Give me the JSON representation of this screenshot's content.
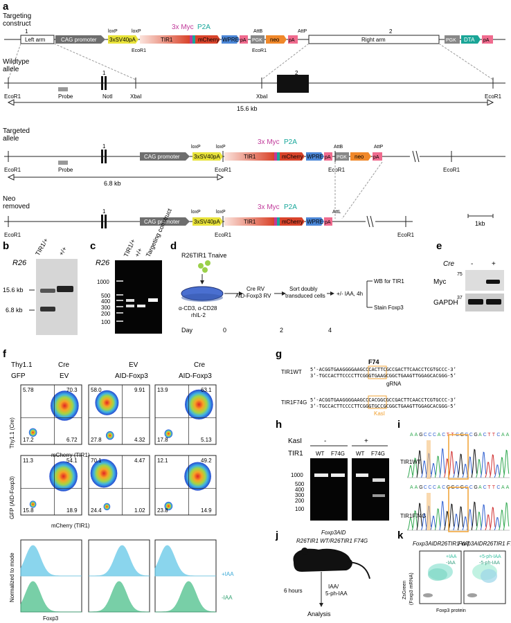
{
  "panel_letters": [
    "a",
    "b",
    "c",
    "d",
    "e",
    "f",
    "g",
    "h",
    "i",
    "j",
    "k"
  ],
  "a": {
    "row_labels": {
      "targeting": "Targeting",
      "targeting2": "construct",
      "wildtype": "Wildtype",
      "wildtype2": "allele",
      "targeted": "Targeted",
      "targeted2": "allele",
      "neo": "Neo",
      "neo2": "removed"
    },
    "features": {
      "left_arm": "Left arm",
      "cag": "CAG promoter",
      "sv40": "3xSV40pA",
      "tir1": "TIR1",
      "mcherry": "mCherry",
      "wpre": "WPRE",
      "pa": "pA",
      "pgk": "PGK",
      "neo": "neo",
      "right_arm": "Right arm",
      "dta": "DTA",
      "myc": "3x Myc",
      "p2a": "P2A",
      "loxp": "loxP",
      "attb": "AttB",
      "attp": "AttP",
      "attl": "AttL",
      "ecor1": "EcoR1",
      "noti": "NotI",
      "xbai": "XbaI",
      "probe": "Probe",
      "exon1": "1",
      "exon2": "2"
    },
    "sizes": {
      "wt": "15.6 kb",
      "targeted": "6.8 kb",
      "scale": "1kb"
    }
  },
  "b": {
    "title": "R26",
    "lanes": [
      "TIR1/+",
      "+/+"
    ],
    "markers": [
      "15.6 kb",
      "6.8 kb"
    ]
  },
  "c": {
    "title": "R26",
    "lanes": [
      "TIR1/+",
      "+/+",
      "Targeting construct"
    ],
    "ladder": [
      "1000",
      "500",
      "400",
      "300",
      "200",
      "100"
    ]
  },
  "d": {
    "mouse": "R26TIR1 Tnaive",
    "stim": "α-CD3, α-CD28",
    "stim2": "rhIL-2",
    "step1": "Cre RV",
    "step1b": "AID-Foxp3 RV",
    "step2": "Sort doubly",
    "step2b": "transduced cells",
    "step3": "+/- IAA, 4h",
    "out1": "WB for TIR1",
    "out2": "Stain Foxp3",
    "day_label": "Day",
    "days": [
      "0",
      "2",
      "4"
    ]
  },
  "e": {
    "cre": "Cre",
    "minus": "-",
    "plus": "+",
    "rows": [
      "Myc",
      "GAPDH"
    ],
    "mw": [
      "75",
      "37"
    ]
  },
  "f": {
    "thy_label": "Thy1.1",
    "gfp_label": "GFP",
    "columns": [
      {
        "top": "Cre",
        "bottom": "EV"
      },
      {
        "top": "EV",
        "bottom": "AID-Foxp3"
      },
      {
        "top": "Cre",
        "bottom": "AID-Foxp3"
      }
    ],
    "row1_ylabel": "Thy1.1 (Cre)",
    "row2_ylabel": "GFP (AID-Foxp3)",
    "xlabel": "mCherry (TIR1)",
    "hist_ylabel": "Normalized to mode",
    "hist_xlabel": "Foxp3",
    "iaa_plus": "+IAA",
    "iaa_minus": "-IAA",
    "row1_quads": [
      [
        "5.78",
        "70.3",
        "17.2",
        "6.72"
      ],
      [
        "58.0",
        "9.91",
        "27.8",
        "4.32"
      ],
      [
        "13.9",
        "63.1",
        "17.8",
        "5.13"
      ]
    ],
    "row2_quads": [
      [
        "11.3",
        "54.1",
        "15.8",
        "18.9"
      ],
      [
        "70.1",
        "4.47",
        "24.4",
        "1.02"
      ],
      [
        "12.1",
        "49.2",
        "23.8",
        "14.9"
      ]
    ]
  },
  "g": {
    "f74": "F74",
    "wt_label": "TIR1WT",
    "mut_label": "TIR1F74G",
    "grna": "gRNA",
    "kasi": "KasI",
    "wt_top": "5’-ACGGTGAAGGGGAAGCCCACTTCGCCGACTTCAACCTCGTGCCC-3’",
    "wt_bot": "3’-TGCCACTTCCCCTTCGGGTGAAGCGGCTGAAGTTGGAGCACGGG-5’",
    "mut_top": "5’-ACGGTGAAGGGGAAGCCCACGGCGCCGACTTCAACCTCGTGCCC-3’",
    "mut_bot": "3’-TGCCACTTCCCCTTCGGGTGCCGCGGCTGAAGTTGGAGCACGGG-5’"
  },
  "h": {
    "kasi": "KasI",
    "minus": "-",
    "plus": "+",
    "tir1": "TIR1",
    "lanes": [
      "WT",
      "F74G",
      "WT",
      "F74G"
    ],
    "ladder": [
      "1000",
      "500",
      "400",
      "300",
      "200",
      "100"
    ]
  },
  "i": {
    "seq": [
      "A",
      "A",
      "G",
      "C",
      "C",
      "C",
      "A",
      "C",
      "T",
      "T",
      "C",
      "G",
      "C",
      "C",
      "G",
      "A",
      "C",
      "T",
      "T",
      "C",
      "A",
      "A"
    ],
    "seq2": [
      "A",
      "A",
      "G",
      "C",
      "C",
      "C",
      "A",
      "C",
      "G",
      "G",
      "C",
      "G",
      "C",
      "C",
      "G",
      "A",
      "C",
      "T",
      "T",
      "C",
      "A",
      "A"
    ],
    "wt_label": "TIR1WT",
    "mut_label": "TIR1F74G"
  },
  "j": {
    "geno1": "Foxp3AID",
    "geno2": "R26TIR1 WT/R26TIR1 F74G",
    "treat": "IAA/",
    "treat2": "5-ph-IAA",
    "time": "6 hours",
    "analysis": "Analysis"
  },
  "k": {
    "title1": "Foxp3AIDR26TIR1 WT",
    "title2": "Foxp3AIDR26TIR1 F74G",
    "ylabel": "ZsGreen",
    "ylabel2": "(Foxp3 mRNA)",
    "xlabel": "Foxp3 protein",
    "leg1": [
      "+IAA",
      "-IAA"
    ],
    "leg2": [
      "+5-ph-IAA",
      "-5-ph-IAA"
    ]
  },
  "colors": {
    "cag": "#6e6e6e",
    "sv40": "#e8e23a",
    "tir1": "#d9442b",
    "mcherry": "#d9442b",
    "myc": "#c0399a",
    "p2a": "#17a79a",
    "wpre": "#4b86d6",
    "neo": "#f0882a",
    "pa": "#f06b8e",
    "dta": "#1aa597",
    "hist_plus": "#64c8e8",
    "hist_minus": "#4cc08a"
  }
}
